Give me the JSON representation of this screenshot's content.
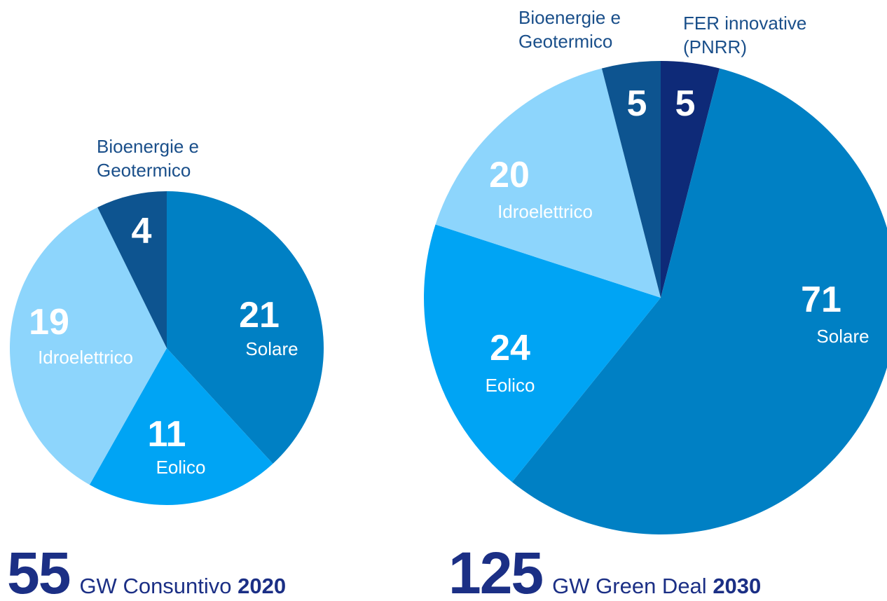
{
  "chart_data": [
    {
      "type": "pie",
      "categories": [
        "Solare",
        "Eolico",
        "Idroelettrico",
        "Bioenergie e Geotermico"
      ],
      "values": [
        21,
        11,
        19,
        4
      ],
      "colors": [
        "#0080c4",
        "#00a4f4",
        "#8dd5fc",
        "#0d5490"
      ],
      "total": 55,
      "unit": "GW",
      "caption": "Consuntivo",
      "year": "2020"
    },
    {
      "type": "pie",
      "categories": [
        "FER innovative (PNRR)",
        "Solare",
        "Eolico",
        "Idroelettrico",
        "Bioenergie e Geotermico"
      ],
      "values": [
        5,
        71,
        24,
        20,
        5
      ],
      "colors": [
        "#0e2a78",
        "#0080c4",
        "#00a4f4",
        "#8dd5fc",
        "#0d5490"
      ],
      "total": 125,
      "unit": "GW",
      "caption": "Green Deal",
      "year": "2030"
    }
  ]
}
